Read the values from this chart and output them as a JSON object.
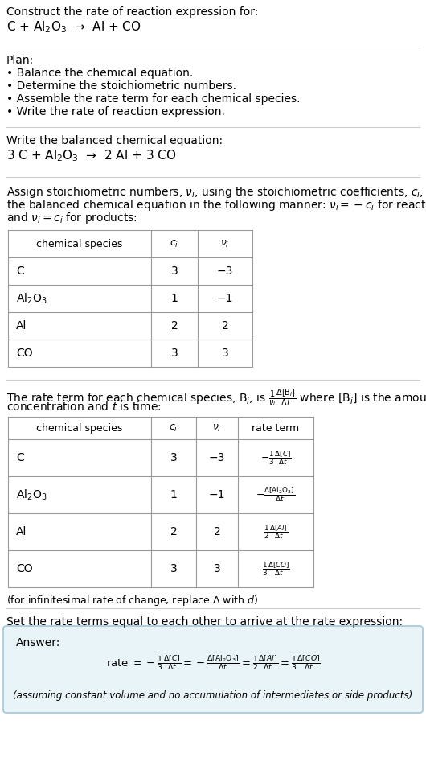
{
  "bg_color": "#ffffff",
  "answer_box_color": "#e8f4f8",
  "answer_box_edge": "#a0c8dc",
  "table_line_color": "#999999",
  "sep_line_color": "#cccccc",
  "font_size": 10,
  "font_size_small": 9,
  "font_size_large": 11,
  "sec1_line1": "Construct the rate of reaction expression for:",
  "sec1_line2": "C + Al$_2$O$_3$  →  Al + CO",
  "sec2_header": "Plan:",
  "sec2_items": [
    "• Balance the chemical equation.",
    "• Determine the stoichiometric numbers.",
    "• Assemble the rate term for each chemical species.",
    "• Write the rate of reaction expression."
  ],
  "sec3_header": "Write the balanced chemical equation:",
  "sec3_eq": "3 C + Al$_2$O$_3$  →  2 Al + 3 CO",
  "sec4_intro": [
    "Assign stoichiometric numbers, $\\nu_i$, using the stoichiometric coefficients, $c_i$, from",
    "the balanced chemical equation in the following manner: $\\nu_i = -c_i$ for reactants",
    "and $\\nu_i = c_i$ for products:"
  ],
  "table1_headers": [
    "chemical species",
    "$c_i$",
    "$\\nu_i$"
  ],
  "table1_data": [
    [
      "C",
      "3",
      "−3"
    ],
    [
      "Al$_2$O$_3$",
      "1",
      "−1"
    ],
    [
      "Al",
      "2",
      "2"
    ],
    [
      "CO",
      "3",
      "3"
    ]
  ],
  "sec5_intro": [
    "The rate term for each chemical species, B$_i$, is $\\frac{1}{\\nu_i}\\frac{\\Delta[\\mathrm{B}_i]}{\\Delta t}$ where [B$_i$] is the amount",
    "concentration and $t$ is time:"
  ],
  "table2_headers": [
    "chemical species",
    "$c_i$",
    "$\\nu_i$",
    "rate term"
  ],
  "table2_data": [
    [
      "C",
      "3",
      "−3",
      "$-\\frac{1}{3}\\frac{\\Delta[C]}{\\Delta t}$"
    ],
    [
      "Al$_2$O$_3$",
      "1",
      "−1",
      "$-\\frac{\\Delta[\\mathrm{Al_2O_3}]}{\\Delta t}$"
    ],
    [
      "Al",
      "2",
      "2",
      "$\\frac{1}{2}\\frac{\\Delta[Al]}{\\Delta t}$"
    ],
    [
      "CO",
      "3",
      "3",
      "$\\frac{1}{3}\\frac{\\Delta[CO]}{\\Delta t}$"
    ]
  ],
  "infinitesimal_note": "(for infinitesimal rate of change, replace Δ with $d$)",
  "sec6_header": "Set the rate terms equal to each other to arrive at the rate expression:",
  "answer_label": "Answer:",
  "answer_eq": "rate $= -\\frac{1}{3}\\frac{\\Delta[C]}{\\Delta t} = -\\frac{\\Delta[\\mathrm{Al_2O_3}]}{\\Delta t} = \\frac{1}{2}\\frac{\\Delta[Al]}{\\Delta t} = \\frac{1}{3}\\frac{\\Delta[CO]}{\\Delta t}$",
  "answer_note": "(assuming constant volume and no accumulation of intermediates or side products)"
}
